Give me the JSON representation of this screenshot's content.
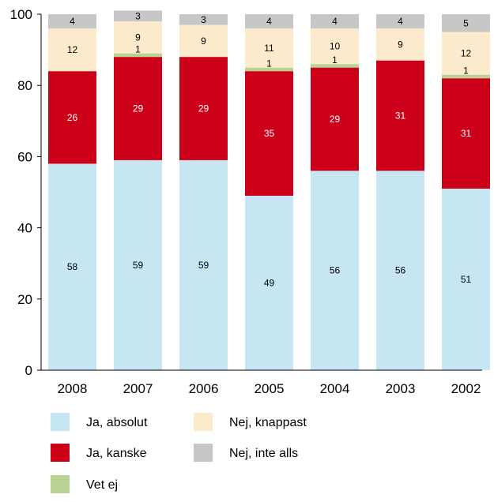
{
  "chart_data": {
    "type": "bar",
    "stacked": true,
    "categories": [
      "2008",
      "2007",
      "2006",
      "2005",
      "2004",
      "2003",
      "2002"
    ],
    "series": [
      {
        "name": "Ja, absolut",
        "color": "#c6e6f4",
        "values": [
          58,
          59,
          59,
          49,
          56,
          56,
          51
        ],
        "label_color": "#000000"
      },
      {
        "name": "Ja, kanske",
        "color": "#cc0018",
        "values": [
          26,
          29,
          29,
          35,
          29,
          31,
          31
        ],
        "label_color": "#ffffff"
      },
      {
        "name": "Vet ej",
        "color": "#b9d292",
        "values": [
          0,
          1,
          0,
          1,
          1,
          0,
          1
        ],
        "label_color": "#000000"
      },
      {
        "name": "Nej, knappast",
        "color": "#fbeacb",
        "values": [
          12,
          9,
          9,
          11,
          10,
          9,
          12
        ],
        "label_color": "#000000"
      },
      {
        "name": "Nej, inte alls",
        "color": "#c7c7c7",
        "values": [
          4,
          3,
          3,
          4,
          4,
          4,
          5
        ],
        "label_color": "#000000"
      }
    ],
    "y_ticks": [
      "0",
      "20",
      "40",
      "60",
      "80",
      "100"
    ],
    "ylim": [
      0,
      100
    ],
    "grid": false,
    "legend_placement": "bottom",
    "legend_order": [
      0,
      3,
      1,
      4,
      2
    ]
  }
}
